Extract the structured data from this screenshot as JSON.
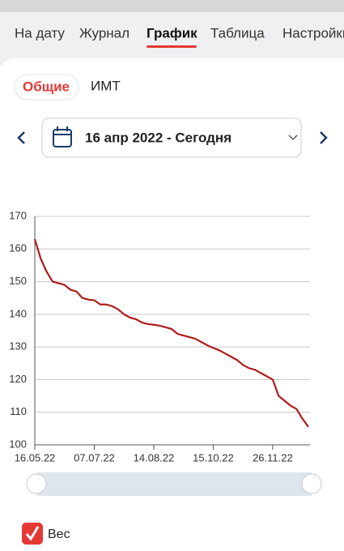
{
  "tabs": [
    "На дату",
    "Журнал",
    "График",
    "Таблица",
    "Настройки"
  ],
  "filters": [
    "Общие",
    "ИМТ"
  ],
  "date_range": "16 апр 2022 - Сегодня",
  "chart_data": {
    "type": "line",
    "x": [
      0,
      1,
      2,
      3,
      4,
      5,
      6,
      7,
      8,
      9,
      10,
      11,
      12,
      13,
      14,
      15,
      16,
      17,
      18,
      19,
      20,
      21,
      22,
      23,
      24,
      25,
      26,
      27,
      28,
      29,
      30,
      31,
      32,
      33,
      34,
      35,
      36,
      37,
      38,
      39,
      40,
      41,
      42,
      43,
      44,
      45,
      46
    ],
    "xlim": [
      0,
      46
    ],
    "xticks": [
      {
        "value": 0,
        "label": "16.05.22"
      },
      {
        "value": 10,
        "label": "07.07.22"
      },
      {
        "value": 20,
        "label": "14.08.22"
      },
      {
        "value": 30,
        "label": "15.10.22"
      },
      {
        "value": 40,
        "label": "26.11.22"
      }
    ],
    "ylim": [
      100,
      170
    ],
    "yticks": [
      100,
      110,
      120,
      130,
      140,
      150,
      160,
      170
    ],
    "grid": true,
    "series": [
      {
        "name": "Вес",
        "color": "#b01c1c",
        "values": [
          163,
          157,
          153,
          150,
          149.5,
          149,
          147.5,
          147,
          145,
          144.5,
          144.3,
          143,
          143,
          142.5,
          141.5,
          140,
          139,
          138.5,
          137.5,
          137,
          136.8,
          136.5,
          136,
          135.5,
          134,
          133.5,
          133,
          132.5,
          131.5,
          130.5,
          129.7,
          129,
          128,
          127,
          126,
          124.5,
          123.5,
          123,
          122,
          121,
          120,
          115,
          113.5,
          112,
          111,
          108,
          105.5
        ]
      }
    ]
  }
}
